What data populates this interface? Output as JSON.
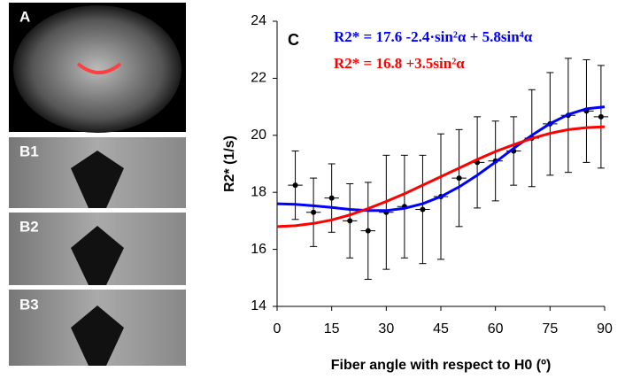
{
  "panels": {
    "a": "A",
    "b1": "B1",
    "b2": "B2",
    "b3": "B3"
  },
  "chart_data": {
    "type": "errorbar",
    "panel_label": "C",
    "x_label": "Fiber angle with respect to H0 (º)",
    "y_label": "R2* (1/s)",
    "xlim": [
      0,
      90
    ],
    "ylim": [
      14,
      24
    ],
    "xticks": [
      0,
      15,
      30,
      45,
      60,
      75,
      90
    ],
    "yticks": [
      14,
      16,
      18,
      20,
      22,
      24
    ],
    "points": {
      "color": "#000000",
      "x": [
        5,
        10,
        15,
        20,
        25,
        30,
        35,
        40,
        45,
        50,
        55,
        60,
        65,
        70,
        75,
        80,
        85,
        89
      ],
      "values": [
        18.25,
        17.3,
        17.8,
        17.0,
        16.65,
        17.3,
        17.5,
        17.4,
        17.85,
        18.5,
        19.05,
        19.1,
        19.45,
        19.9,
        20.4,
        20.7,
        20.85,
        20.65
      ],
      "errors": [
        1.2,
        1.2,
        1.2,
        1.3,
        1.7,
        2.0,
        1.8,
        1.9,
        2.2,
        1.7,
        1.6,
        1.4,
        1.2,
        1.7,
        1.8,
        2.0,
        1.8,
        1.8
      ],
      "xerr": [
        2,
        2,
        2,
        2,
        2,
        2,
        2,
        2,
        2,
        2,
        2,
        2,
        2,
        2,
        2,
        2,
        2,
        2
      ]
    },
    "series": [
      {
        "name": "R2* =  17.6 -2.4·sin²α + 5.8sin⁴α",
        "color": "#0000ff",
        "x": [
          0,
          5,
          10,
          15,
          20,
          25,
          30,
          35,
          40,
          45,
          50,
          55,
          60,
          65,
          70,
          75,
          80,
          85,
          90
        ],
        "values": [
          17.6,
          17.58,
          17.53,
          17.47,
          17.4,
          17.36,
          17.36,
          17.44,
          17.6,
          17.85,
          18.19,
          18.6,
          19.06,
          19.54,
          20.0,
          20.41,
          20.73,
          20.93,
          21.0
        ]
      },
      {
        "name": "R2* =  16.8 +3.5sin²α",
        "color": "#ff0000",
        "x": [
          0,
          5,
          10,
          15,
          20,
          25,
          30,
          35,
          40,
          45,
          50,
          55,
          60,
          65,
          70,
          75,
          80,
          85,
          90
        ],
        "values": [
          16.8,
          16.83,
          16.91,
          17.03,
          17.21,
          17.43,
          17.68,
          17.95,
          18.25,
          18.55,
          18.85,
          19.15,
          19.43,
          19.67,
          19.89,
          20.07,
          20.2,
          20.27,
          20.3
        ]
      }
    ]
  }
}
